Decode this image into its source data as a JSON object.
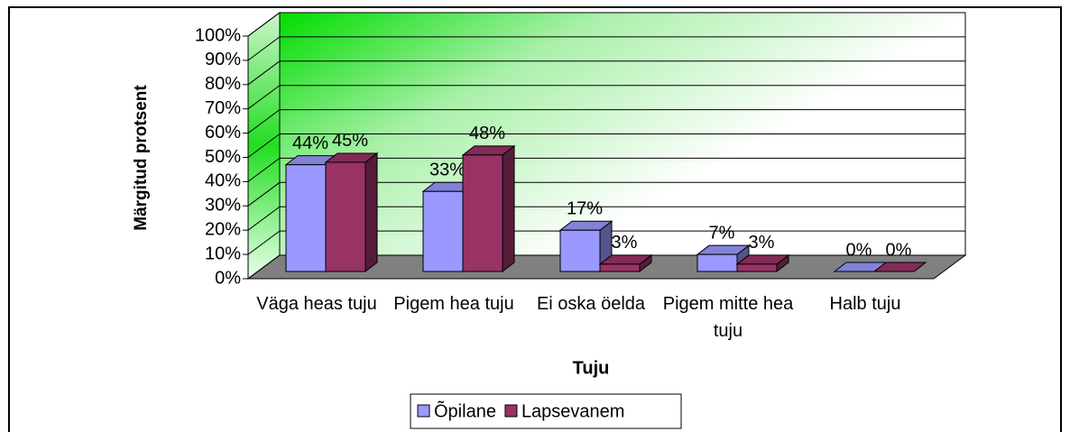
{
  "chart_data": {
    "type": "bar3d",
    "x_label": "Tuju",
    "y_label": "Märgitud protsent",
    "categories": [
      "Väga heas tuju",
      "Pigem hea tuju",
      "Ei oska öelda",
      "Pigem mitte hea tuju",
      "Halb tuju"
    ],
    "series": [
      {
        "name": "Õpilane",
        "color": "#9999ff",
        "values": [
          44,
          33,
          17,
          7,
          0
        ],
        "value_labels": [
          "44%",
          "33%",
          "17%",
          "7%",
          "0%"
        ]
      },
      {
        "name": "Lapsevanem",
        "color": "#993366",
        "values": [
          45,
          48,
          3,
          3,
          0
        ],
        "value_labels": [
          "45%",
          "48%",
          "3%",
          "3%",
          "0%"
        ]
      }
    ],
    "ylim": [
      0,
      100
    ],
    "yticks": [
      {
        "value": 0,
        "label": "0%"
      },
      {
        "value": 10,
        "label": "10%"
      },
      {
        "value": 20,
        "label": "20%"
      },
      {
        "value": 30,
        "label": "30%"
      },
      {
        "value": 40,
        "label": "40%"
      },
      {
        "value": 50,
        "label": "50%"
      },
      {
        "value": 60,
        "label": "60%"
      },
      {
        "value": 70,
        "label": "70%"
      },
      {
        "value": 80,
        "label": "80%"
      },
      {
        "value": 90,
        "label": "90%"
      },
      {
        "value": 100,
        "label": "100%"
      }
    ],
    "grid": true,
    "legend": "bottom"
  }
}
